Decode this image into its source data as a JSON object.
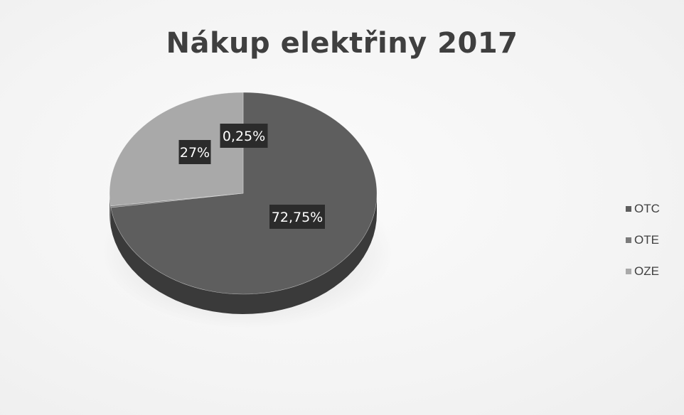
{
  "chart_data": {
    "type": "pie",
    "title": "Nákup elektřiny 2017",
    "categories": [
      "OTC",
      "OTE",
      "OZE"
    ],
    "values": [
      72.75,
      0.25,
      27
    ],
    "data_labels": [
      "72,75%",
      "0,25%",
      "27%"
    ],
    "colors": [
      "#5e5e5e",
      "#7b7b7b",
      "#a9a9a9"
    ],
    "legend_position": "right",
    "style": "3d"
  }
}
